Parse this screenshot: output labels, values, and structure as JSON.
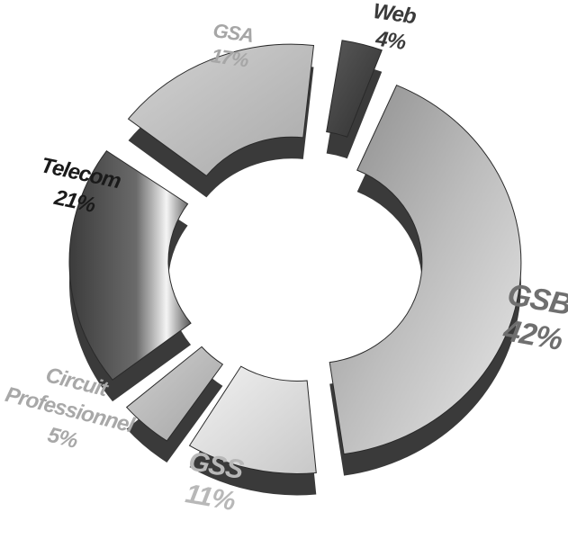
{
  "chart_data": {
    "type": "pie",
    "style": "exploded 3D donut",
    "slices": [
      {
        "label": "GSB",
        "value": 42,
        "value_text": "42%",
        "color": "#9a9a9a",
        "label_color": "#6f6f6f"
      },
      {
        "label": "GSS",
        "value": 11,
        "value_text": "11%",
        "color": "#d6d6d6",
        "label_color": "#b8b8b8"
      },
      {
        "label": "Circuit Professionnel",
        "label_lines": [
          "Circuit",
          "Professionnel"
        ],
        "value": 5,
        "value_text": "5%",
        "color": "#bdbdbd",
        "label_color": "#a8a8a8"
      },
      {
        "label": "Telecom",
        "value": 21,
        "value_text": "21%",
        "color": "#5e5e5e",
        "label_color": "#1a1a1a"
      },
      {
        "label": "GSA",
        "value": 17,
        "value_text": "17%",
        "color": "#bcbcbc",
        "label_color": "#a6a6a6"
      },
      {
        "label": "Web",
        "value": 4,
        "value_text": "4%",
        "color": "#4a4a4a",
        "label_color": "#3a3a3a"
      }
    ]
  }
}
